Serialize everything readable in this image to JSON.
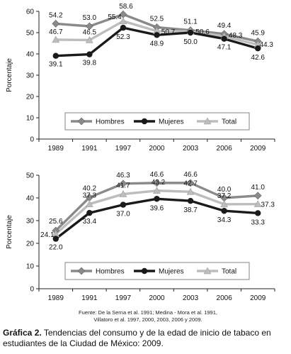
{
  "chart_data": [
    {
      "type": "line",
      "x": [
        "1989",
        "1991",
        "1997",
        "2000",
        "2003",
        "2006",
        "2009"
      ],
      "ylabel": "Porcentaje",
      "ylim": [
        0,
        60
      ],
      "yticks": [
        0,
        10,
        20,
        30,
        40,
        50,
        60
      ],
      "grid": false,
      "legend": "bottom-center",
      "series": [
        {
          "name": "Hombres",
          "color": "#8a8a8a",
          "marker": "diamond",
          "values": [
            54.2,
            53.0,
            58.6,
            52.5,
            51.1,
            49.4,
            45.9
          ],
          "labels": [
            "54.2",
            "53.0",
            "58.6",
            "52.5",
            "51.1",
            "49.4",
            "45.9"
          ]
        },
        {
          "name": "Mujeres",
          "color": "#1a1a1a",
          "marker": "circle",
          "values": [
            39.1,
            39.8,
            52.3,
            48.9,
            50.0,
            47.1,
            42.6
          ],
          "labels": [
            "39.1",
            "39.8",
            "52.3",
            "48.9",
            "50.0",
            "47.1",
            "42.6"
          ]
        },
        {
          "name": "Total",
          "color": "#bdbdbd",
          "marker": "triangle",
          "values": [
            46.7,
            46.5,
            55.4,
            50.7,
            50.6,
            48.3,
            44.3
          ],
          "labels": [
            "46.7",
            "46.5",
            "55.4",
            "50.7",
            "50.6",
            "48.3",
            "44.3"
          ]
        }
      ]
    },
    {
      "type": "line",
      "x": [
        "1989",
        "1991",
        "1997",
        "2000",
        "2003",
        "2006",
        "2009"
      ],
      "ylabel": "Porcentaje",
      "ylim": [
        0,
        50
      ],
      "yticks": [
        0,
        10,
        20,
        30,
        40,
        50
      ],
      "grid": false,
      "legend": "bottom-center",
      "series": [
        {
          "name": "Hombres",
          "color": "#8a8a8a",
          "marker": "diamond",
          "values": [
            25.6,
            40.2,
            46.3,
            46.6,
            46.6,
            40.0,
            41.0
          ],
          "labels": [
            "25.6",
            "40.2",
            "46.3",
            "46.6",
            "46.6",
            "40.0",
            "41.0"
          ]
        },
        {
          "name": "Mujeres",
          "color": "#1a1a1a",
          "marker": "circle",
          "values": [
            22.0,
            33.4,
            37.0,
            39.6,
            38.7,
            34.3,
            33.3
          ],
          "labels": [
            "22.0",
            "33.4",
            "37.0",
            "39.6",
            "38.7",
            "34.3",
            "33.3"
          ]
        },
        {
          "name": "Total",
          "color": "#bdbdbd",
          "marker": "triangle",
          "values": [
            24.1,
            37.3,
            41.7,
            43.2,
            42.7,
            37.2,
            37.3
          ],
          "labels": [
            "24.1",
            "37.3",
            "41.7",
            "43.2",
            "42.7",
            "37.2",
            "37.3"
          ]
        }
      ]
    }
  ],
  "source": {
    "line1": "Fuente: De la Serna et al. 1991; Medina - Mora et al. 1991,",
    "line2": "Villatoro et al. 1997, 2000, 2003, 2006 y 2009."
  },
  "caption": {
    "label": "Gráfica 2.",
    "text": " Tendencias del consumo y de la edad de inicio de tabaco en estudiantes de la Ciudad de México: 2009."
  }
}
